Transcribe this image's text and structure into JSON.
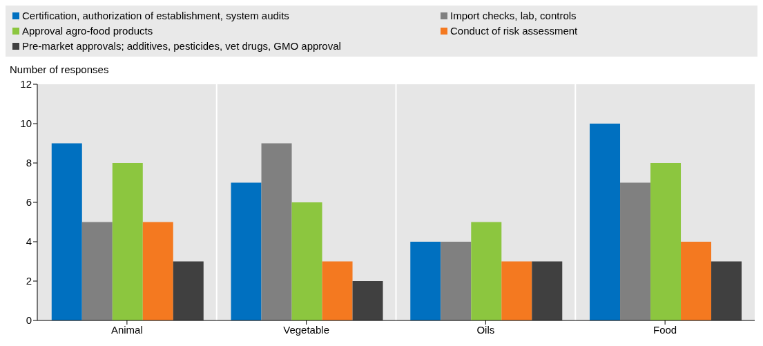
{
  "chart_data": {
    "type": "bar",
    "ylabel": "Number of responses",
    "categories": [
      "Animal",
      "Vegetable",
      "Oils",
      "Food"
    ],
    "series": [
      {
        "name": "Certification, authorization of establishment, system audits",
        "color": "#0070c0",
        "values": [
          9,
          7,
          4,
          10
        ]
      },
      {
        "name": "Import checks, lab, controls",
        "color": "#808080",
        "values": [
          5,
          9,
          4,
          7
        ]
      },
      {
        "name": "Approval agro-food products",
        "color": "#8cc63f",
        "values": [
          8,
          6,
          5,
          8
        ]
      },
      {
        "name": "Conduct of risk assessment",
        "color": "#f47920",
        "values": [
          5,
          3,
          3,
          4
        ]
      },
      {
        "name": "Pre-market approvals; additives, pesticides, vet drugs, GMO approval",
        "color": "#404040",
        "values": [
          3,
          2,
          3,
          3
        ]
      }
    ],
    "ylim": [
      0,
      12
    ],
    "yticks": [
      0,
      2,
      4,
      6,
      8,
      10,
      12
    ],
    "grid": "x",
    "legend": "top"
  }
}
